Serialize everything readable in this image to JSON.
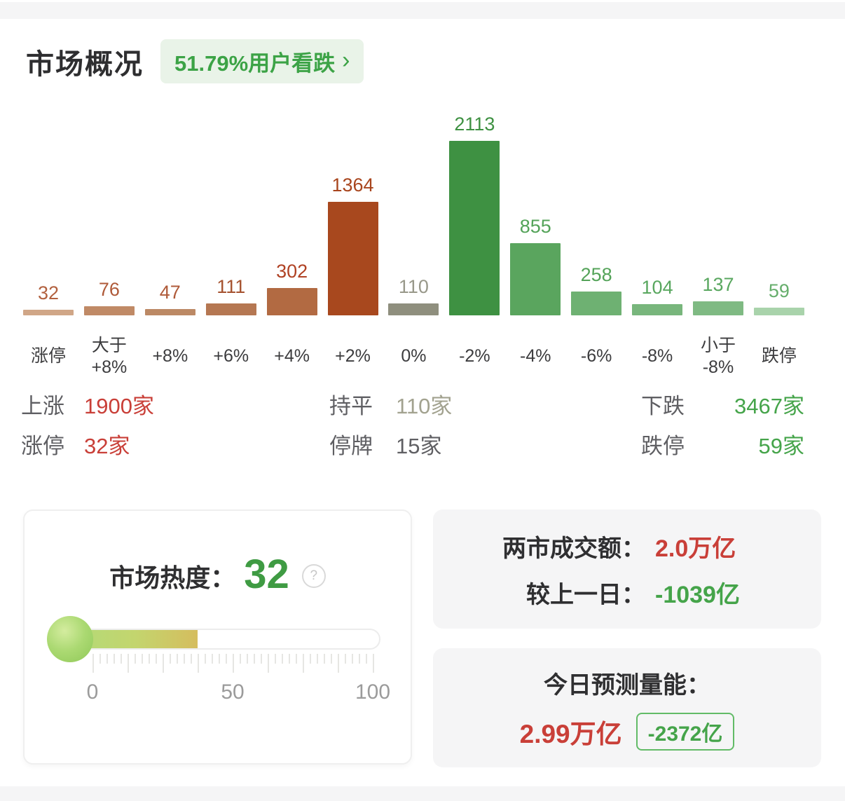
{
  "page": {
    "bg": "#ffffff",
    "strip_color": "#f5f5f6"
  },
  "header": {
    "title": "市场概况",
    "sentiment_badge": {
      "text": "51.79%用户看跌",
      "chevron": "›",
      "text_color": "#3ca346",
      "bg_color": "#e9f3e8"
    }
  },
  "chart_data": {
    "type": "bar",
    "categories": [
      "涨停",
      "大于\n+8%",
      "+8%",
      "+6%",
      "+4%",
      "+2%",
      "0%",
      "-2%",
      "-4%",
      "-6%",
      "-8%",
      "小于\n-8%",
      "跌停"
    ],
    "values": [
      32,
      76,
      47,
      111,
      302,
      1364,
      110,
      2113,
      855,
      258,
      104,
      137,
      59
    ],
    "bar_colors": [
      "#d0a687",
      "#c08a66",
      "#bc8965",
      "#b57752",
      "#b26a42",
      "#a8481e",
      "#8f8f7e",
      "#3e9142",
      "#5aa55e",
      "#6eb172",
      "#78b67c",
      "#7fba83",
      "#a9d3ab"
    ],
    "value_label_colors": [
      "#b2613f",
      "#af5a39",
      "#af5a39",
      "#a5522f",
      "#b04224",
      "#a8451d",
      "#98988a",
      "#3e9142",
      "#54a359",
      "#54a359",
      "#59a75f",
      "#59a75f",
      "#66ae6c"
    ],
    "ylim": [
      0,
      2113
    ],
    "xlabel": "",
    "ylabel": ""
  },
  "summary": {
    "rows": [
      [
        {
          "label": "上涨",
          "value": "1900家",
          "value_color": "#c93f38"
        },
        {
          "label": "持平",
          "value": "110家",
          "value_color": "#a2a28f"
        },
        {
          "label": "下跌",
          "value": "3467家",
          "value_color": "#45a44a"
        }
      ],
      [
        {
          "label": "涨停",
          "value": "32家",
          "value_color": "#c93f38"
        },
        {
          "label": "停牌",
          "value": "15家",
          "value_color": "#5f5f63"
        },
        {
          "label": "跌停",
          "value": "59家",
          "value_color": "#45a44a"
        }
      ]
    ]
  },
  "heat": {
    "label": "市场热度：",
    "value": "32",
    "value_color": "#3f9b43",
    "help_glyph": "?",
    "gauge": {
      "min": 0,
      "max": 100,
      "value": 32,
      "tick_labels": [
        "0",
        "50",
        "100"
      ]
    }
  },
  "turnover": {
    "rows": [
      {
        "label": "两市成交额：",
        "value": "2.0万亿",
        "value_color": "#c93f38"
      },
      {
        "label": "较上一日：",
        "value": "-1039亿",
        "value_color": "#45a44a"
      }
    ]
  },
  "forecast": {
    "title": "今日预测量能：",
    "value": "2.99万亿",
    "value_color": "#c93f38",
    "delta_badge": {
      "text": "-2372亿",
      "text_color": "#45a44a",
      "border_color": "#62bb67"
    }
  }
}
